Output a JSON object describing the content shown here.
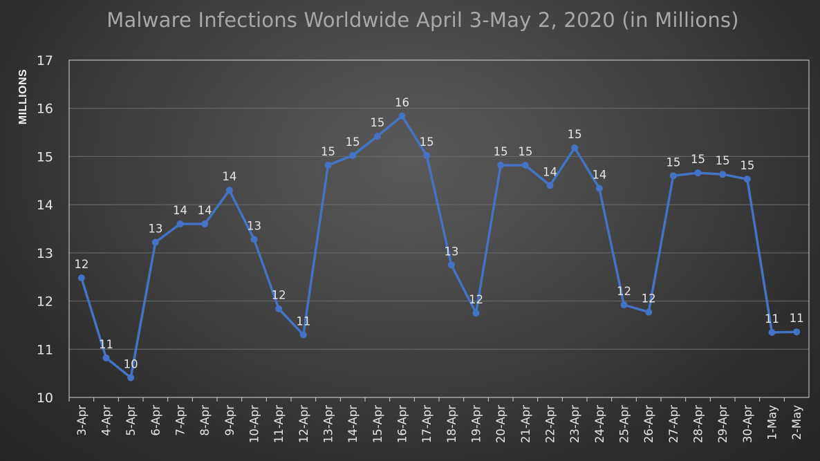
{
  "chart_data": {
    "type": "line",
    "title": "Malware Infections Worldwide April 3-May 2, 2020 (in Millions)",
    "xlabel": "",
    "ylabel": "MILLIONS",
    "ylim": [
      10,
      17
    ],
    "yticks": [
      "10",
      "11",
      "12",
      "13",
      "14",
      "15",
      "16",
      "17"
    ],
    "grid": true,
    "legend": "none",
    "line_color": "#4472c4",
    "categories": [
      "3-Apr",
      "4-Apr",
      "5-Apr",
      "6-Apr",
      "7-Apr",
      "8-Apr",
      "9-Apr",
      "10-Apr",
      "11-Apr",
      "12-Apr",
      "13-Apr",
      "14-Apr",
      "15-Apr",
      "16-Apr",
      "17-Apr",
      "18-Apr",
      "19-Apr",
      "20-Apr",
      "21-Apr",
      "22-Apr",
      "23-Apr",
      "24-Apr",
      "25-Apr",
      "26-Apr",
      "27-Apr",
      "28-Apr",
      "29-Apr",
      "30-Apr",
      "1-May",
      "2-May"
    ],
    "values": [
      12.48,
      10.82,
      10.41,
      13.22,
      13.6,
      13.6,
      14.3,
      13.28,
      11.84,
      11.3,
      14.82,
      15.02,
      15.42,
      15.84,
      15.02,
      12.75,
      11.75,
      14.82,
      14.82,
      14.4,
      15.18,
      14.34,
      11.92,
      11.77,
      14.6,
      14.66,
      14.63,
      14.53,
      11.35,
      11.36
    ],
    "data_labels": [
      "12",
      "11",
      "10",
      "13",
      "14",
      "14",
      "14",
      "13",
      "12",
      "11",
      "15",
      "15",
      "15",
      "16",
      "15",
      "13",
      "12",
      "15",
      "15",
      "14",
      "15",
      "14",
      "12",
      "12",
      "15",
      "15",
      "15",
      "15",
      "11",
      "11"
    ]
  }
}
